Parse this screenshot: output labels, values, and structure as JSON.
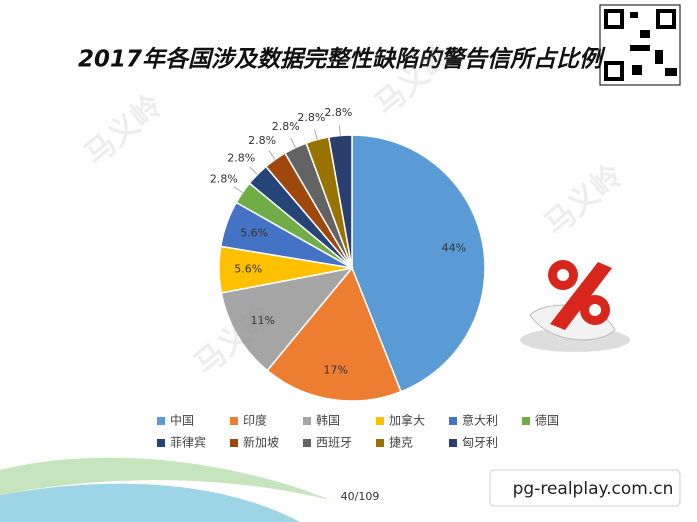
{
  "chart_data": {
    "type": "pie",
    "title": "2017年各国涉及数据完整性缺陷的警告信所占比例",
    "categories": [
      "中国",
      "印度",
      "韩国",
      "加拿大",
      "意大利",
      "德国",
      "菲律宾",
      "新加坡",
      "西班牙",
      "捷克",
      "匈牙利"
    ],
    "values": [
      44,
      17,
      11,
      5.6,
      5.6,
      2.8,
      2.8,
      2.8,
      2.8,
      2.8,
      2.8
    ],
    "value_labels": [
      "44%",
      "17%",
      "11%",
      "5.6%",
      "5.6%",
      "2.8%",
      "2.8%",
      "2.8%",
      "2.8%",
      "2.8%",
      "2.8%"
    ],
    "colors": [
      "#5b9bd5",
      "#ed7d31",
      "#a5a5a5",
      "#ffc000",
      "#4472c4",
      "#70ad47",
      "#264478",
      "#9e480e",
      "#636363",
      "#997300",
      "#2b3f6e"
    ],
    "legend": "bottom"
  },
  "page_number": "40/109",
  "watermark": "马义岭",
  "site": "pg-realplay.com.cn"
}
